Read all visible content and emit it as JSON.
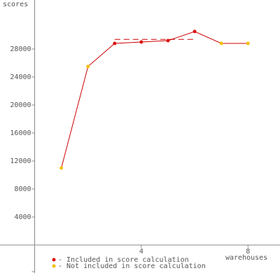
{
  "chart_data": {
    "type": "line",
    "y_label": "scores",
    "x_label": "warehouses",
    "x": [
      1,
      2,
      3,
      4,
      5,
      6,
      7,
      8
    ],
    "values": [
      11000,
      25500,
      28800,
      29000,
      29200,
      30500,
      28800,
      28800
    ],
    "included": [
      false,
      false,
      true,
      true,
      true,
      true,
      false,
      false
    ],
    "line_color": "#cc0000",
    "score_line": {
      "value": 29375,
      "from": 3,
      "to": 6
    },
    "legend": [
      {
        "label": "- Included in score calculation",
        "color": "#dd1111"
      },
      {
        "label": "- Not included in score calculation",
        "color": "#f5c000"
      }
    ],
    "xlim": [
      -1.3,
      9.2
    ],
    "ylim": [
      -4000,
      35000
    ],
    "xticks": [
      4,
      8
    ],
    "yticks": [
      4000,
      8000,
      12000,
      16000,
      20000,
      24000,
      28000
    ]
  }
}
